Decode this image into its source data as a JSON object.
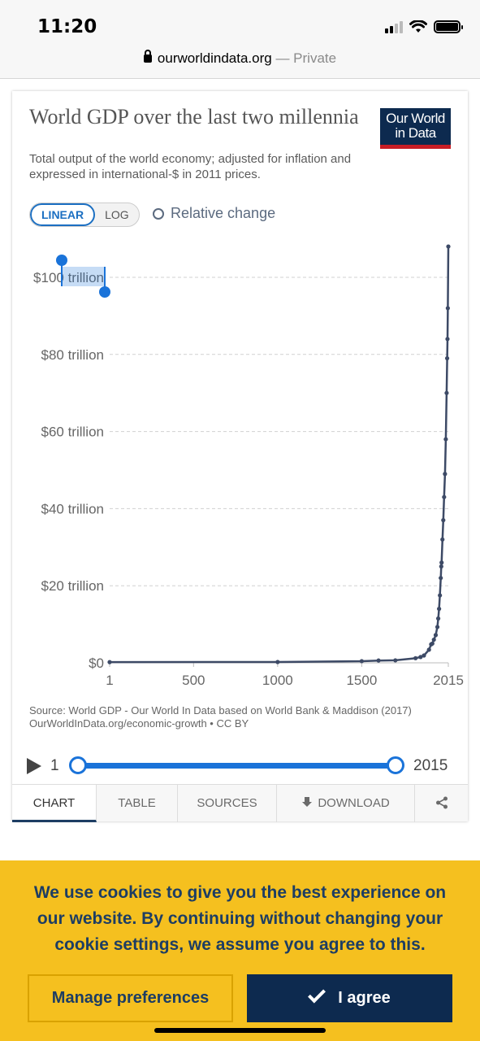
{
  "status_bar": {
    "time": "11:20"
  },
  "address_bar": {
    "domain": "ourworldindata.org",
    "suffix": " — Private"
  },
  "logo": {
    "line1": "Our World",
    "line2": "in Data"
  },
  "controls": {
    "linear": "LINEAR",
    "log": "LOG",
    "relative": "Relative change",
    "selected_scale": "LINEAR"
  },
  "chart_data": {
    "type": "line",
    "title": "World GDP over the last two millennia",
    "subtitle": "Total output of the world economy; adjusted for inflation and expressed in international-$ in 2011 prices.",
    "y_ticks": [
      "$0",
      "$20 trillion",
      "$40 trillion",
      "$60 trillion",
      "$80 trillion",
      "$100 trillion"
    ],
    "x_ticks": [
      "1",
      "500",
      "1000",
      "1500",
      "2015"
    ],
    "xlim": [
      1,
      2015
    ],
    "ylim": [
      0,
      100
    ],
    "y_unit": "trillion international-$",
    "grid": true,
    "series": [
      {
        "color": "#3d4a66",
        "x": [
          1,
          1000,
          1500,
          1600,
          1700,
          1820,
          1850,
          1870,
          1900,
          1913,
          1920,
          1929,
          1940,
          1950,
          1955,
          1960,
          1965,
          1970,
          1973,
          1975,
          1980,
          1985,
          1990,
          1995,
          2000,
          2005,
          2008,
          2010,
          2012,
          2015
        ],
        "y": [
          0.18,
          0.21,
          0.43,
          0.6,
          0.65,
          1.2,
          1.5,
          1.9,
          3.4,
          4.8,
          5.0,
          6.0,
          7.2,
          9.3,
          11.5,
          14.0,
          17.5,
          22.0,
          25.0,
          26.0,
          32.0,
          37.0,
          43.0,
          49.0,
          58.0,
          70.0,
          79.0,
          84.0,
          92.0,
          108.0
        ]
      }
    ]
  },
  "selected_text": "trillion",
  "source": {
    "line1": "Source: World GDP - Our World In Data based on World Bank & Maddison (2017)",
    "line2": "OurWorldInData.org/economic-growth • CC BY"
  },
  "timeline": {
    "start": "1",
    "end": "2015"
  },
  "tabs": {
    "chart": "CHART",
    "table": "TABLE",
    "sources": "SOURCES",
    "download": "DOWNLOAD"
  },
  "cookie": {
    "message": "We use cookies to give you the best experience on our website. By continuing without changing your cookie settings, we assume you agree to this.",
    "manage": "Manage preferences",
    "agree": "I agree"
  },
  "colors": {
    "accent": "#1a73d9",
    "brand_navy": "#0d2a4f",
    "brand_red": "#c81d25",
    "banner": "#f5c01f"
  }
}
